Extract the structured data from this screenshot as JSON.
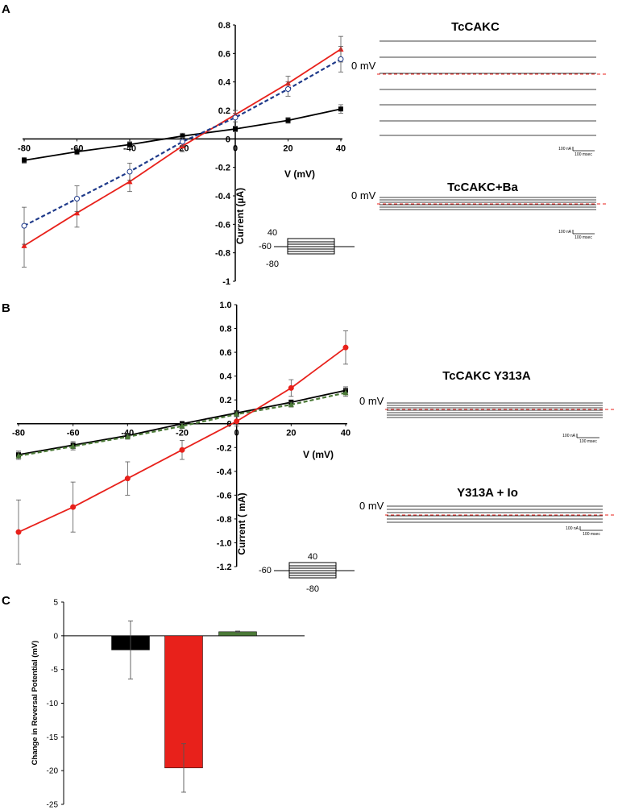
{
  "panels": {
    "a": "A",
    "b": "B",
    "c": "C"
  },
  "traces": [
    {
      "title": "TcCAKC",
      "zero_label": "0 mV",
      "scale_current": "100 nA",
      "scale_time": "100 msec"
    },
    {
      "title": "TcCAKC+Ba",
      "zero_label": "0 mV",
      "scale_current": "100 nA",
      "scale_time": "100 msec"
    },
    {
      "title": "TcCAKC Y313A",
      "zero_label": "0 mV",
      "scale_current": "100 nA",
      "scale_time": "100 msec"
    },
    {
      "title": "Y313A + Io",
      "zero_label": "0 mV",
      "scale_current": "100 nA",
      "scale_time": "100 msec"
    }
  ],
  "protocols": [
    {
      "top": "40",
      "left": "-60",
      "bottom": "-80"
    },
    {
      "top": "40",
      "left": "-60",
      "bottom": "-80"
    }
  ],
  "colors": {
    "black": "#000000",
    "red": "#e8211b",
    "navy": "#1f3a8a",
    "green": "#4c7a38",
    "zero_line": "#e8211b"
  },
  "chart_data": [
    {
      "type": "line",
      "panel": "A",
      "xlabel": "V (mV)",
      "ylabel": "Current (µA)",
      "xlim": [
        -80,
        40
      ],
      "ylim": [
        -1,
        0.8
      ],
      "x_ticks": [
        "-80",
        "-60",
        "-40",
        "-20",
        "0",
        "20",
        "40"
      ],
      "y_ticks": [
        "-1",
        "-0.8",
        "-0.6",
        "-0.4",
        "-0.2",
        "0",
        "0.2",
        "0.4",
        "0.6",
        "0.8"
      ],
      "x": [
        -80,
        -60,
        -40,
        -20,
        0,
        20,
        40
      ],
      "series": [
        {
          "color": "black",
          "marker": "square",
          "dash": false,
          "values": [
            -0.15,
            -0.09,
            -0.04,
            0.02,
            0.07,
            0.13,
            0.21
          ],
          "errors": [
            0.02,
            0.02,
            0.02,
            0.02,
            0.02,
            0.02,
            0.03
          ]
        },
        {
          "color": "red",
          "marker": "triangle",
          "dash": false,
          "values": [
            -0.75,
            -0.52,
            -0.3,
            -0.05,
            0.17,
            0.39,
            0.63
          ],
          "errors": [
            0.15,
            0.1,
            0.07,
            0.04,
            0.03,
            0.05,
            0.09
          ]
        },
        {
          "color": "navy",
          "marker": "circle",
          "dash": true,
          "values": [
            -0.61,
            -0.42,
            -0.23,
            -0.02,
            0.15,
            0.35,
            0.56
          ],
          "errors": [
            0.13,
            0.09,
            0.06,
            0.03,
            0.03,
            0.05,
            0.09
          ]
        }
      ]
    },
    {
      "type": "line",
      "panel": "B",
      "xlabel": "V (mV)",
      "ylabel": "Current ( mA)",
      "xlim": [
        -80,
        40
      ],
      "ylim": [
        -1.2,
        1.0
      ],
      "x_ticks": [
        "-80",
        "-60",
        "-40",
        "-20",
        "0",
        "20",
        "40"
      ],
      "y_ticks": [
        "-1.2",
        "-1.0",
        "-0.8",
        "-0.6",
        "-0.4",
        "-0.2",
        "0",
        "0.2",
        "0.4",
        "0.6",
        "0.8",
        "1.0"
      ],
      "x": [
        -80,
        -60,
        -40,
        -20,
        0,
        20,
        40
      ],
      "series": [
        {
          "color": "black",
          "marker": "square",
          "dash": false,
          "values": [
            -0.26,
            -0.18,
            -0.1,
            0.0,
            0.09,
            0.18,
            0.28
          ],
          "errors": [
            0.03,
            0.03,
            0.02,
            0.02,
            0.02,
            0.02,
            0.03
          ]
        },
        {
          "color": "green",
          "marker": "triangle",
          "dash": true,
          "values": [
            -0.27,
            -0.19,
            -0.11,
            -0.02,
            0.08,
            0.16,
            0.26
          ],
          "errors": [
            0.03,
            0.03,
            0.02,
            0.02,
            0.02,
            0.02,
            0.03
          ]
        },
        {
          "color": "red",
          "marker": "circle",
          "dash": false,
          "values": [
            -0.91,
            -0.7,
            -0.46,
            -0.22,
            0.02,
            0.3,
            0.64
          ],
          "errors": [
            0.27,
            0.21,
            0.14,
            0.08,
            0.04,
            0.07,
            0.14
          ]
        }
      ]
    },
    {
      "type": "bar",
      "panel": "C",
      "ylabel": "Change in Reversal Potential (mV)",
      "ylim": [
        -25,
        5
      ],
      "y_ticks": [
        "-25",
        "-20",
        "-15",
        "-10",
        "-5",
        "0",
        "5"
      ],
      "values": [
        -2.1,
        -19.6,
        0.6
      ],
      "errors": [
        4.3,
        3.6,
        0.1
      ],
      "colors": [
        "black",
        "red",
        "green"
      ]
    }
  ]
}
